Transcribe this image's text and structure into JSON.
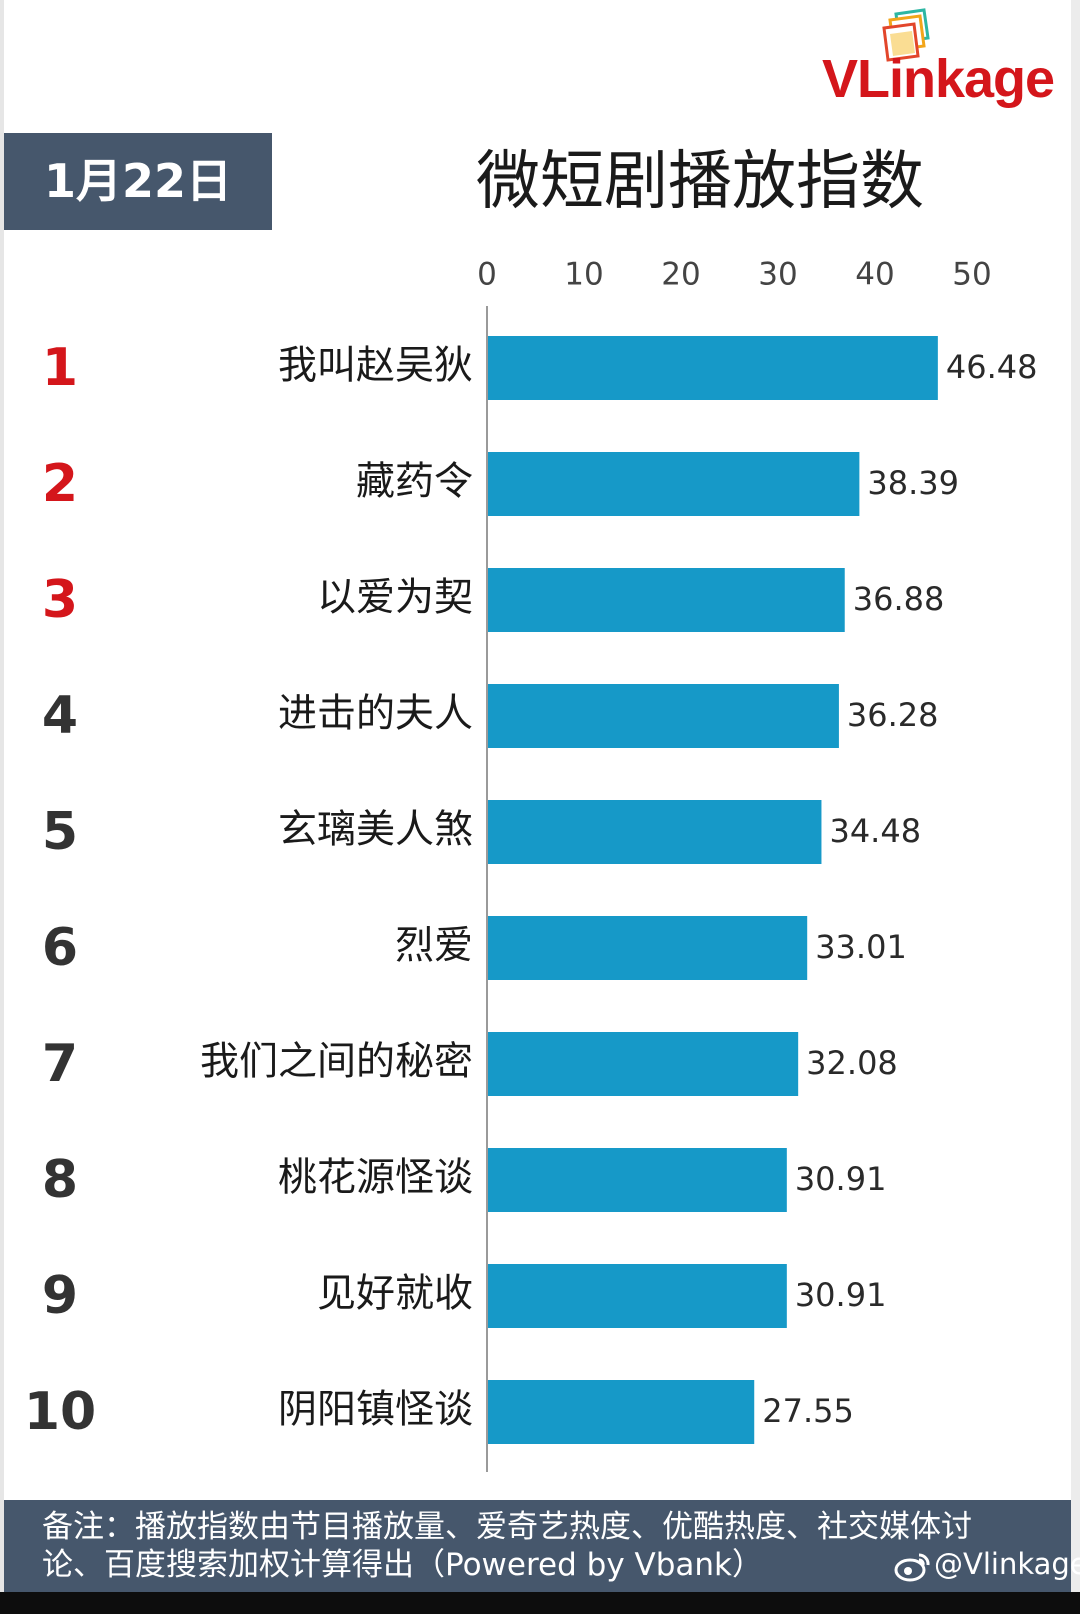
{
  "logo": {
    "text": "VLinkage",
    "brand_color": "#d4161b"
  },
  "date_label": "1月22日",
  "footer": {
    "note_line1": "备注：播放指数由节目播放量、爱奇艺热度、优酷热度、社交媒体讨",
    "note_line2": "论、百度搜索加权计算得出（Powered by Vbank）",
    "weibo_icon": "weibo-icon",
    "weibo_handle": "@Vlinkage"
  },
  "colors": {
    "bar": "#1699c8",
    "top3_rank": "#d4161b",
    "rank": "#333333",
    "header_box": "#46576c"
  },
  "chart_data": {
    "type": "bar",
    "orientation": "horizontal",
    "title": "微短剧播放指数",
    "xlim": [
      0,
      50
    ],
    "xticks": [
      "0",
      "10",
      "20",
      "30",
      "40",
      "50"
    ],
    "xaxis_position": "top",
    "grid": false,
    "legend": "none",
    "ranks": [
      "1",
      "2",
      "3",
      "4",
      "5",
      "6",
      "7",
      "8",
      "9",
      "10"
    ],
    "categories": [
      "我叫赵吴狄",
      "藏药令",
      "以爱为契",
      "进击的夫人",
      "玄璃美人煞",
      "烈爱",
      "我们之间的秘密",
      "桃花源怪谈",
      "见好就收",
      "阴阳镇怪谈"
    ],
    "values": [
      46.48,
      38.39,
      36.88,
      36.28,
      34.48,
      33.01,
      32.08,
      30.91,
      30.91,
      27.55
    ],
    "value_labels": [
      "46.48",
      "38.39",
      "36.88",
      "36.28",
      "34.48",
      "33.01",
      "32.08",
      "30.91",
      "30.91",
      "27.55"
    ]
  }
}
